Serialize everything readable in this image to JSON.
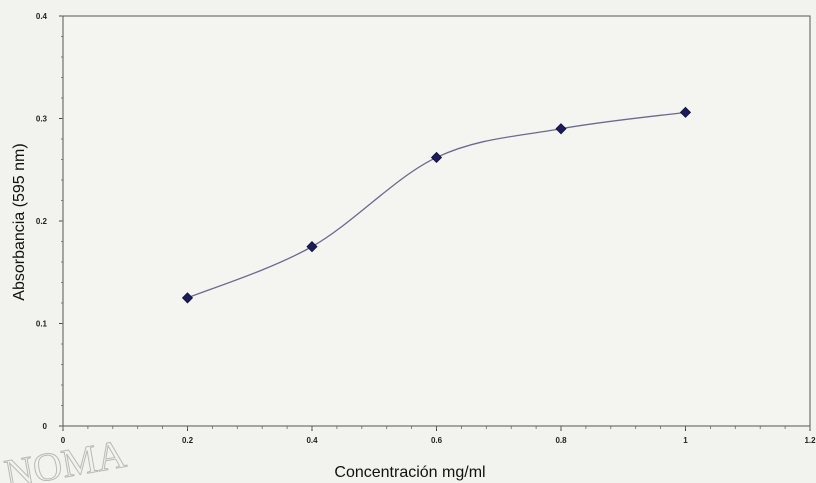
{
  "chart_data": {
    "type": "line",
    "title": "",
    "xlabel": "Concentración mg/ml",
    "ylabel": "Absorbancia (595 nm)",
    "xlim": [
      0,
      1.2
    ],
    "ylim": [
      0,
      0.4
    ],
    "x_ticks": [
      0,
      0.2,
      0.4,
      0.6,
      0.8,
      1,
      1.2
    ],
    "x_tick_labels": [
      "0",
      "0.2",
      "0.4",
      "0.6",
      "0.8",
      "1",
      "1.2"
    ],
    "y_ticks": [
      0,
      0.1,
      0.2,
      0.3,
      0.4
    ],
    "y_tick_labels": [
      "0",
      "0.1",
      "0.2",
      "0.3",
      "0.4"
    ],
    "grid": false,
    "series": [
      {
        "x": [
          0.2,
          0.4,
          0.6,
          0.8,
          1.0
        ],
        "y": [
          0.125,
          0.175,
          0.262,
          0.29,
          0.306
        ],
        "marker": "diamond",
        "color": "#1c1c5c",
        "line_color": "#6a6a8e"
      }
    ]
  },
  "watermark": {
    "text": "NOMA"
  }
}
